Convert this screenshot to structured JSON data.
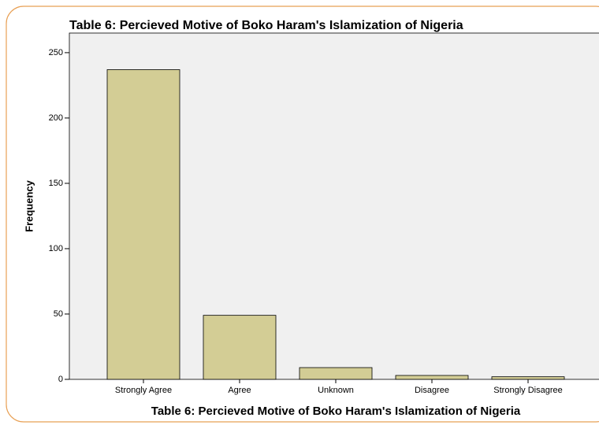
{
  "chart_data": {
    "type": "bar",
    "title": "Table 6: Percieved Motive of Boko Haram's Islamization of Nigeria",
    "x_label": "Table 6: Percieved Motive of Boko Haram's Islamization of Nigeria",
    "y_label": "Frequency",
    "categories": [
      "Strongly Agree",
      "Agree",
      "Unknown",
      "Disagree",
      "Strongly Disagree"
    ],
    "values": [
      237,
      49,
      9,
      3,
      2
    ],
    "color": "#d3cd95",
    "ylim": [
      0,
      265
    ],
    "yticks": [
      0,
      50,
      100,
      150,
      200,
      250
    ],
    "grid": false
  }
}
